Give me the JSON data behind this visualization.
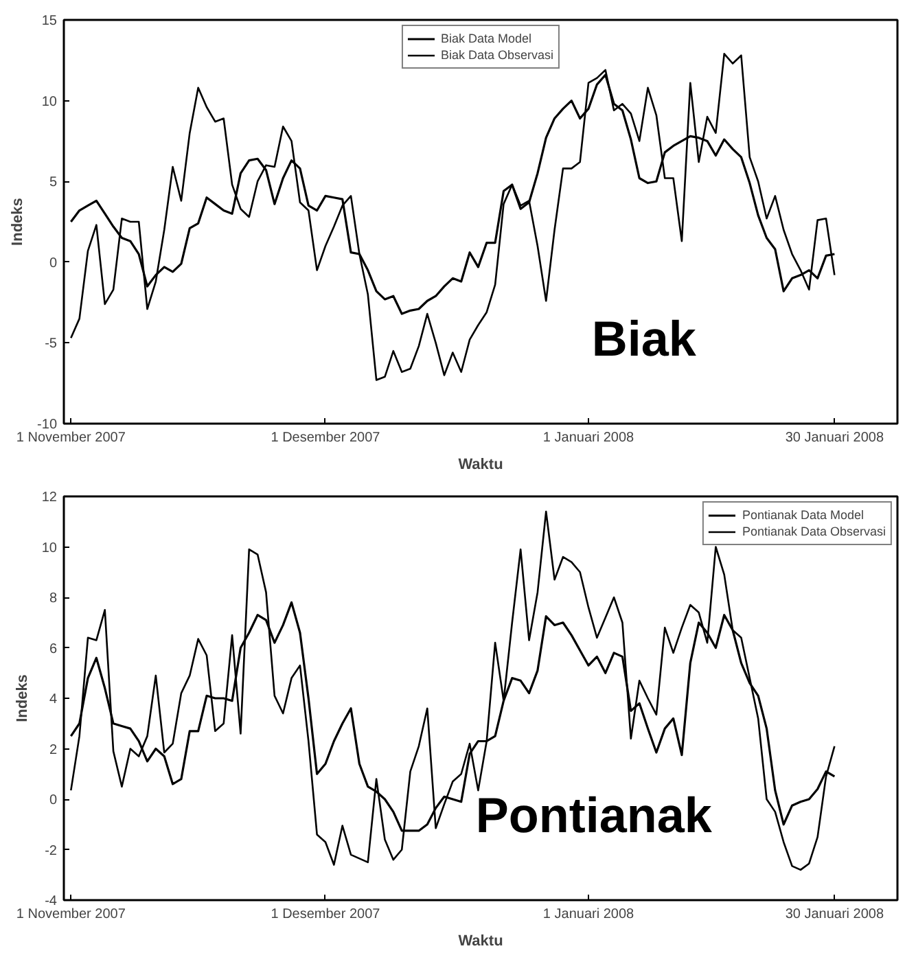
{
  "chart_data": [
    {
      "type": "line",
      "xlabel": "Waktu",
      "ylabel": "Indeks",
      "annotations": [
        "Biak"
      ],
      "legend": "top",
      "grid": false,
      "marker": "none",
      "line_style": "solid",
      "xlim": [
        "2007-10-31T04:00",
        "2008-02-06T10:00"
      ],
      "xticks": [
        {
          "value": "2007-11-01",
          "label": "1 November 2007"
        },
        {
          "value": "2007-12-01",
          "label": "1 Desember 2007"
        },
        {
          "value": "2008-01-01",
          "label": "1 Januari 2008"
        },
        {
          "value": "2008-01-30",
          "label": "30 Januari 2008"
        }
      ],
      "ylim": [
        -10,
        15
      ],
      "yticks": [
        -10,
        -5,
        0,
        5,
        10,
        15
      ],
      "x": [
        "2007-11-01",
        "2007-11-02",
        "2007-11-03",
        "2007-11-04",
        "2007-11-05",
        "2007-11-06",
        "2007-11-07",
        "2007-11-08",
        "2007-11-09",
        "2007-11-10",
        "2007-11-11",
        "2007-11-12",
        "2007-11-13",
        "2007-11-14",
        "2007-11-15",
        "2007-11-16",
        "2007-11-17",
        "2007-11-18",
        "2007-11-19",
        "2007-11-20",
        "2007-11-21",
        "2007-11-22",
        "2007-11-23",
        "2007-11-24",
        "2007-11-25",
        "2007-11-26",
        "2007-11-27",
        "2007-11-28",
        "2007-11-29",
        "2007-11-30",
        "2007-12-01",
        "2007-12-02",
        "2007-12-03",
        "2007-12-04",
        "2007-12-05",
        "2007-12-06",
        "2007-12-07",
        "2007-12-08",
        "2007-12-09",
        "2007-12-10",
        "2007-12-11",
        "2007-12-12",
        "2007-12-13",
        "2007-12-14",
        "2007-12-15",
        "2007-12-16",
        "2007-12-17",
        "2007-12-18",
        "2007-12-19",
        "2007-12-20",
        "2007-12-21",
        "2007-12-22",
        "2007-12-23",
        "2007-12-24",
        "2007-12-25",
        "2007-12-26",
        "2007-12-27",
        "2007-12-28",
        "2007-12-29",
        "2007-12-30",
        "2007-12-31",
        "2008-01-01",
        "2008-01-02",
        "2008-01-03",
        "2008-01-04",
        "2008-01-05",
        "2008-01-06",
        "2008-01-07",
        "2008-01-08",
        "2008-01-09",
        "2008-01-10",
        "2008-01-11",
        "2008-01-12",
        "2008-01-13",
        "2008-01-14",
        "2008-01-15",
        "2008-01-16",
        "2008-01-17",
        "2008-01-18",
        "2008-01-19",
        "2008-01-20",
        "2008-01-21",
        "2008-01-22",
        "2008-01-23",
        "2008-01-24",
        "2008-01-25",
        "2008-01-26",
        "2008-01-27",
        "2008-01-28",
        "2008-01-29",
        "2008-01-30"
      ],
      "series": [
        {
          "name": "Biak Data Model",
          "color": "#000000",
          "values": [
            2.5,
            3.2,
            3.5,
            3.8,
            3.0,
            2.2,
            1.5,
            1.3,
            0.5,
            -1.5,
            -0.8,
            -0.3,
            -0.6,
            -0.1,
            2.1,
            2.4,
            4.0,
            3.6,
            3.2,
            3.0,
            5.5,
            6.3,
            6.4,
            5.7,
            3.6,
            5.2,
            6.3,
            5.8,
            3.5,
            3.2,
            4.1,
            4.0,
            3.9,
            0.6,
            0.5,
            -0.5,
            -1.8,
            -2.3,
            -2.1,
            -3.2,
            -3.0,
            -2.9,
            -2.4,
            -2.1,
            -1.5,
            -1.0,
            -1.2,
            0.6,
            -0.3,
            1.2,
            1.2,
            4.4,
            4.8,
            3.3,
            3.7,
            5.5,
            7.7,
            8.9,
            9.5,
            10.0,
            8.9,
            9.5,
            11.0,
            11.6,
            9.8,
            9.4,
            7.6,
            5.2,
            4.9,
            5.0,
            6.8,
            7.2,
            7.5,
            7.8,
            7.7,
            7.5,
            6.6,
            7.6,
            7.0,
            6.5,
            4.9,
            2.9,
            1.5,
            0.8,
            -1.8,
            -1.0,
            -0.8,
            -0.5,
            -1.0,
            0.4,
            0.5
          ]
        },
        {
          "name": "Biak Data Observasi",
          "color": "#000000",
          "values": [
            -4.7,
            -3.5,
            0.7,
            2.3,
            -2.6,
            -1.7,
            2.7,
            2.5,
            2.5,
            -2.9,
            -1.2,
            2.0,
            5.9,
            3.8,
            8.0,
            10.8,
            9.6,
            8.7,
            8.9,
            4.8,
            3.3,
            2.8,
            5.0,
            6.0,
            5.9,
            8.4,
            7.5,
            3.7,
            3.2,
            -0.5,
            1.0,
            2.2,
            3.5,
            4.1,
            0.5,
            -2.0,
            -7.3,
            -7.1,
            -5.5,
            -6.8,
            -6.6,
            -5.2,
            -3.2,
            -5.0,
            -7.0,
            -5.6,
            -6.8,
            -4.8,
            -3.9,
            -3.1,
            -1.4,
            3.6,
            4.8,
            3.5,
            3.8,
            1.0,
            -2.4,
            2.0,
            5.8,
            5.8,
            6.2,
            11.1,
            11.4,
            11.9,
            9.4,
            9.8,
            9.2,
            7.5,
            10.8,
            9.1,
            5.2,
            5.2,
            1.3,
            11.1,
            6.2,
            9.0,
            8.0,
            12.9,
            12.3,
            12.8,
            6.5,
            5.0,
            2.7,
            4.1,
            2.0,
            0.5,
            -0.5,
            -1.7,
            2.6,
            2.7,
            -0.8
          ]
        }
      ]
    },
    {
      "type": "line",
      "xlabel": "Waktu",
      "ylabel": "Indeks",
      "annotations": [
        "Pontianak"
      ],
      "legend": "top right",
      "grid": false,
      "marker": "none",
      "line_style": "solid",
      "xlim": [
        "2007-10-31T04:00",
        "2008-02-06T10:00"
      ],
      "xticks": [
        {
          "value": "2007-11-01",
          "label": "1 November 2007"
        },
        {
          "value": "2007-12-01",
          "label": "1 Desember 2007"
        },
        {
          "value": "2008-01-01",
          "label": "1 Januari 2008"
        },
        {
          "value": "2008-01-30",
          "label": "30 Januari 2008"
        }
      ],
      "ylim": [
        -4,
        12
      ],
      "yticks": [
        -4,
        -2,
        0,
        2,
        4,
        6,
        8,
        10,
        12
      ],
      "x": [
        "2007-11-01",
        "2007-11-02",
        "2007-11-03",
        "2007-11-04",
        "2007-11-05",
        "2007-11-06",
        "2007-11-07",
        "2007-11-08",
        "2007-11-09",
        "2007-11-10",
        "2007-11-11",
        "2007-11-12",
        "2007-11-13",
        "2007-11-14",
        "2007-11-15",
        "2007-11-16",
        "2007-11-17",
        "2007-11-18",
        "2007-11-19",
        "2007-11-20",
        "2007-11-21",
        "2007-11-22",
        "2007-11-23",
        "2007-11-24",
        "2007-11-25",
        "2007-11-26",
        "2007-11-27",
        "2007-11-28",
        "2007-11-29",
        "2007-11-30",
        "2007-12-01",
        "2007-12-02",
        "2007-12-03",
        "2007-12-04",
        "2007-12-05",
        "2007-12-06",
        "2007-12-07",
        "2007-12-08",
        "2007-12-09",
        "2007-12-10",
        "2007-12-11",
        "2007-12-12",
        "2007-12-13",
        "2007-12-14",
        "2007-12-15",
        "2007-12-16",
        "2007-12-17",
        "2007-12-18",
        "2007-12-19",
        "2007-12-20",
        "2007-12-21",
        "2007-12-22",
        "2007-12-23",
        "2007-12-24",
        "2007-12-25",
        "2007-12-26",
        "2007-12-27",
        "2007-12-28",
        "2007-12-29",
        "2007-12-30",
        "2007-12-31",
        "2008-01-01",
        "2008-01-02",
        "2008-01-03",
        "2008-01-04",
        "2008-01-05",
        "2008-01-06",
        "2008-01-07",
        "2008-01-08",
        "2008-01-09",
        "2008-01-10",
        "2008-01-11",
        "2008-01-12",
        "2008-01-13",
        "2008-01-14",
        "2008-01-15",
        "2008-01-16",
        "2008-01-17",
        "2008-01-18",
        "2008-01-19",
        "2008-01-20",
        "2008-01-21",
        "2008-01-22",
        "2008-01-23",
        "2008-01-24",
        "2008-01-25",
        "2008-01-26",
        "2008-01-27",
        "2008-01-28",
        "2008-01-29",
        "2008-01-30"
      ],
      "series": [
        {
          "name": "Pontianak Data Model",
          "color": "#000000",
          "values": [
            2.5,
            3.0,
            4.8,
            5.6,
            4.4,
            3.0,
            2.9,
            2.8,
            2.3,
            1.5,
            2.0,
            1.7,
            0.6,
            0.8,
            2.7,
            2.7,
            4.1,
            4.0,
            4.0,
            3.9,
            6.0,
            6.6,
            7.3,
            7.1,
            6.2,
            6.9,
            7.8,
            6.6,
            4.0,
            1.0,
            1.4,
            2.3,
            3.0,
            3.6,
            1.4,
            0.5,
            0.3,
            0.0,
            -0.5,
            -1.25,
            -1.25,
            -1.25,
            -1.0,
            -0.35,
            0.1,
            0.0,
            -0.1,
            1.8,
            2.3,
            2.3,
            2.5,
            3.9,
            4.8,
            4.7,
            4.2,
            5.1,
            7.25,
            6.9,
            7.0,
            6.5,
            5.9,
            5.3,
            5.65,
            5.0,
            5.8,
            5.65,
            3.5,
            3.8,
            2.8,
            1.85,
            2.8,
            3.2,
            1.75,
            5.4,
            7.0,
            6.6,
            6.0,
            7.3,
            6.7,
            5.4,
            4.6,
            4.1,
            2.8,
            0.35,
            -1.0,
            -0.25,
            -0.1,
            0.0,
            0.4,
            1.1,
            0.9
          ]
        },
        {
          "name": "Pontianak Data Observasi",
          "color": "#000000",
          "values": [
            0.35,
            2.5,
            6.4,
            6.3,
            7.5,
            1.9,
            0.5,
            2.0,
            1.7,
            2.5,
            4.9,
            1.85,
            2.2,
            4.2,
            4.9,
            6.35,
            5.7,
            2.7,
            3.0,
            6.5,
            2.6,
            9.9,
            9.7,
            8.2,
            4.1,
            3.4,
            4.8,
            5.3,
            2.3,
            -1.4,
            -1.7,
            -2.6,
            -1.05,
            -2.2,
            -2.35,
            -2.5,
            0.8,
            -1.6,
            -2.4,
            -2.0,
            1.1,
            2.1,
            3.6,
            -1.15,
            -0.2,
            0.7,
            1.0,
            2.2,
            0.35,
            2.3,
            6.2,
            3.9,
            7.0,
            9.9,
            6.3,
            8.2,
            11.4,
            8.7,
            9.6,
            9.4,
            9.0,
            7.6,
            6.4,
            7.2,
            8.0,
            7.0,
            2.4,
            4.7,
            4.0,
            3.35,
            6.8,
            5.8,
            6.8,
            7.7,
            7.4,
            6.2,
            10.0,
            8.9,
            6.7,
            6.4,
            4.8,
            3.2,
            0.0,
            -0.5,
            -1.7,
            -2.65,
            -2.8,
            -2.55,
            -1.5,
            0.9,
            2.1
          ]
        }
      ]
    }
  ]
}
